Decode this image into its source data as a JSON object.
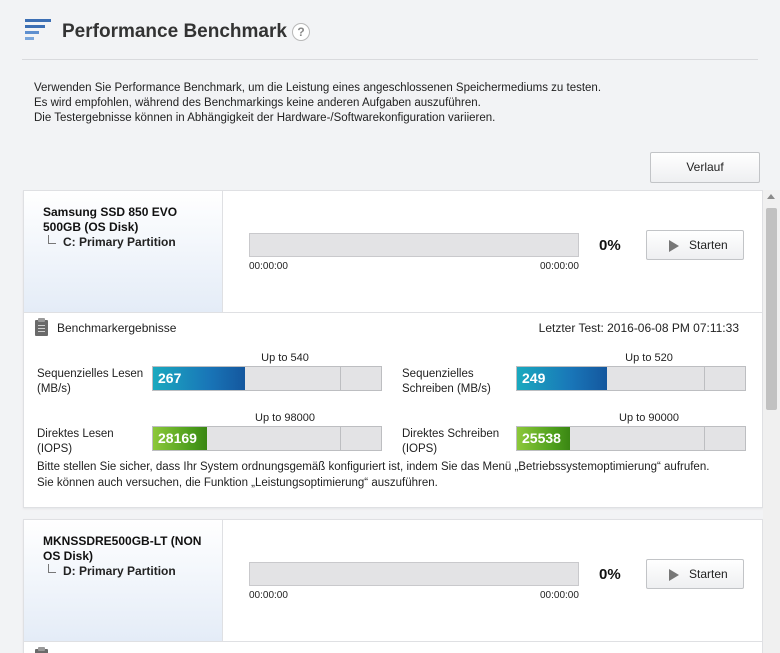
{
  "header": {
    "title": "Performance Benchmark",
    "help_glyph": "?"
  },
  "intro": {
    "line1": "Verwenden Sie Performance Benchmark, um die Leistung eines angeschlossenen Speichermediums zu testen.",
    "line2": "Es wird empfohlen, während des Benchmarkings keine anderen Aufgaben auszuführen.",
    "line3": "Die Testergebnisse können in Abhängigkeit der Hardware-/Softwarekonfiguration variieren."
  },
  "history_button": "Verlauf",
  "colors": {
    "accent_blue": "#1976b8",
    "accent_green": "#4d9e1c"
  },
  "disks": [
    {
      "name": "Samsung SSD 850 EVO 500GB (OS Disk)",
      "partition": "C: Primary Partition",
      "progress_percent": "0%",
      "progress_fraction": 0,
      "elapsed": "00:00:00",
      "remaining": "00:00:00",
      "start_label": "Starten",
      "results": {
        "title": "Benchmarkergebnisse",
        "last_test": "Letzter Test: 2016-06-08 PM 07:11:33",
        "seq_read": {
          "label_line1": "Sequenzielles Lesen",
          "label_line2": "(MB/s)",
          "value": "267",
          "value_num": 267,
          "cap": "Up to 540",
          "cap_num": 540
        },
        "seq_write": {
          "label_line1": "Sequenzielles",
          "label_line2": "Schreiben (MB/s)",
          "value": "249",
          "value_num": 249,
          "cap": "Up to 520",
          "cap_num": 520
        },
        "rand_read": {
          "label_line1": "Direktes Lesen",
          "label_line2": "(IOPS)",
          "value": "28169",
          "value_num": 28169,
          "cap": "Up to 98000",
          "cap_num": 98000
        },
        "rand_write": {
          "label_line1": "Direktes Schreiben",
          "label_line2": "(IOPS)",
          "value": "25538",
          "value_num": 25538,
          "cap": "Up to 90000",
          "cap_num": 90000
        },
        "hint_line1": "Bitte stellen Sie sicher, dass Ihr System ordnungsgemäß konfiguriert ist, indem Sie das Menü „Betriebssystemoptimierung“ aufrufen.",
        "hint_line2": "Sie können auch versuchen, die Funktion „Leistungsoptimierung“ auszuführen."
      }
    },
    {
      "name": "MKNSSDRE500GB-LT  (NON OS Disk)",
      "partition": "D: Primary Partition",
      "progress_percent": "0%",
      "progress_fraction": 0,
      "elapsed": "00:00:00",
      "remaining": "00:00:00",
      "start_label": "Starten"
    }
  ]
}
